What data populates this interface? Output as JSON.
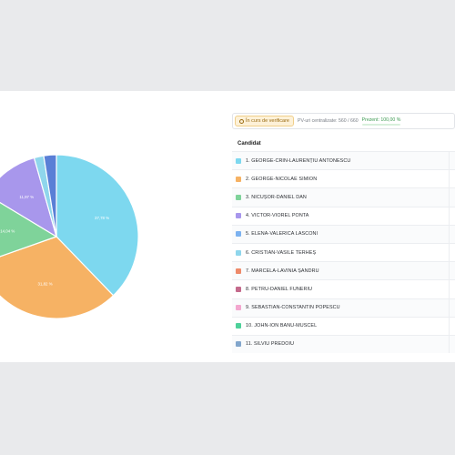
{
  "status": {
    "chip_label": "În curs de verificare",
    "sections_text": "PV-uri centralizate: 560 / 660",
    "present_text": "Prezent: 100,00 %",
    "present_fraction": 1.0
  },
  "table": {
    "header": "Candidat"
  },
  "candidates": [
    {
      "label": "1. GEORGE-CRIN-LAURENȚIU ANTONESCU",
      "color": "#7dd8ef"
    },
    {
      "label": "2. GEORGE-NICOLAE SIMION",
      "color": "#f6b264"
    },
    {
      "label": "3. NICUȘOR-DANIEL DAN",
      "color": "#7fd39a"
    },
    {
      "label": "4. VICTOR-VIOREL PONTA",
      "color": "#a897ec"
    },
    {
      "label": "5. ELENA-VALERICA LASCONI",
      "color": "#7cb2f0"
    },
    {
      "label": "6. CRISTIAN-VASILE TERHEȘ",
      "color": "#8fd6ec"
    },
    {
      "label": "7. MARCELA-LAVINIA ȘANDRU",
      "color": "#ee8a6a"
    },
    {
      "label": "8. PETRU-DANIEL FUNERIU",
      "color": "#c46a8c"
    },
    {
      "label": "9. SEBASTIAN-CONSTANTIN POPESCU",
      "color": "#f3a7cf"
    },
    {
      "label": "10. JOHN-ION BANU-MUSCEL",
      "color": "#4ed19a"
    },
    {
      "label": "11. SILVIU PREDOIU",
      "color": "#82a6cc"
    }
  ],
  "chart_data": {
    "type": "pie",
    "slices": [
      {
        "value": 37.78,
        "label": "37,78 %",
        "color": "#7dd8ef"
      },
      {
        "value": 31.82,
        "label": "31,82 %",
        "color": "#f6b264"
      },
      {
        "value": 14.04,
        "label": "14,04 %",
        "color": "#7fd39a"
      },
      {
        "value": 11.97,
        "label": "11,97 %",
        "color": "#a897ec"
      },
      {
        "value": 1.9,
        "label": "",
        "color": "#8fd6ec"
      },
      {
        "value": 2.49,
        "label": "",
        "color": "#5a7fd6"
      }
    ]
  }
}
